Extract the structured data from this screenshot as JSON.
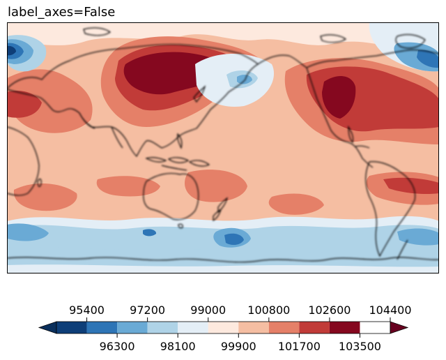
{
  "title": "label_axes=False",
  "colorbar": {
    "levels": [
      94500,
      95400,
      96300,
      97200,
      98100,
      99000,
      99900,
      100800,
      101700,
      102600,
      103500,
      104400
    ],
    "colors": [
      "#0e3e78",
      "#2e75b6",
      "#6aaad5",
      "#afd3e7",
      "#e4eef6",
      "#fde9de",
      "#f5bea2",
      "#e58068",
      "#c13b38",
      "#85081f"
    ],
    "under_color": "#0a2f5c",
    "over_color": "#67001f",
    "top_tick_labels": [
      "95400",
      "97200",
      "99000",
      "100800",
      "102600",
      "104400"
    ],
    "bottom_tick_labels": [
      "96300",
      "98100",
      "99900",
      "101700",
      "103500"
    ]
  },
  "map": {
    "projection": "PlateCarree, central_longitude 180",
    "land_outline_color": "#000000",
    "background_level_color": "#f5bea2"
  }
}
